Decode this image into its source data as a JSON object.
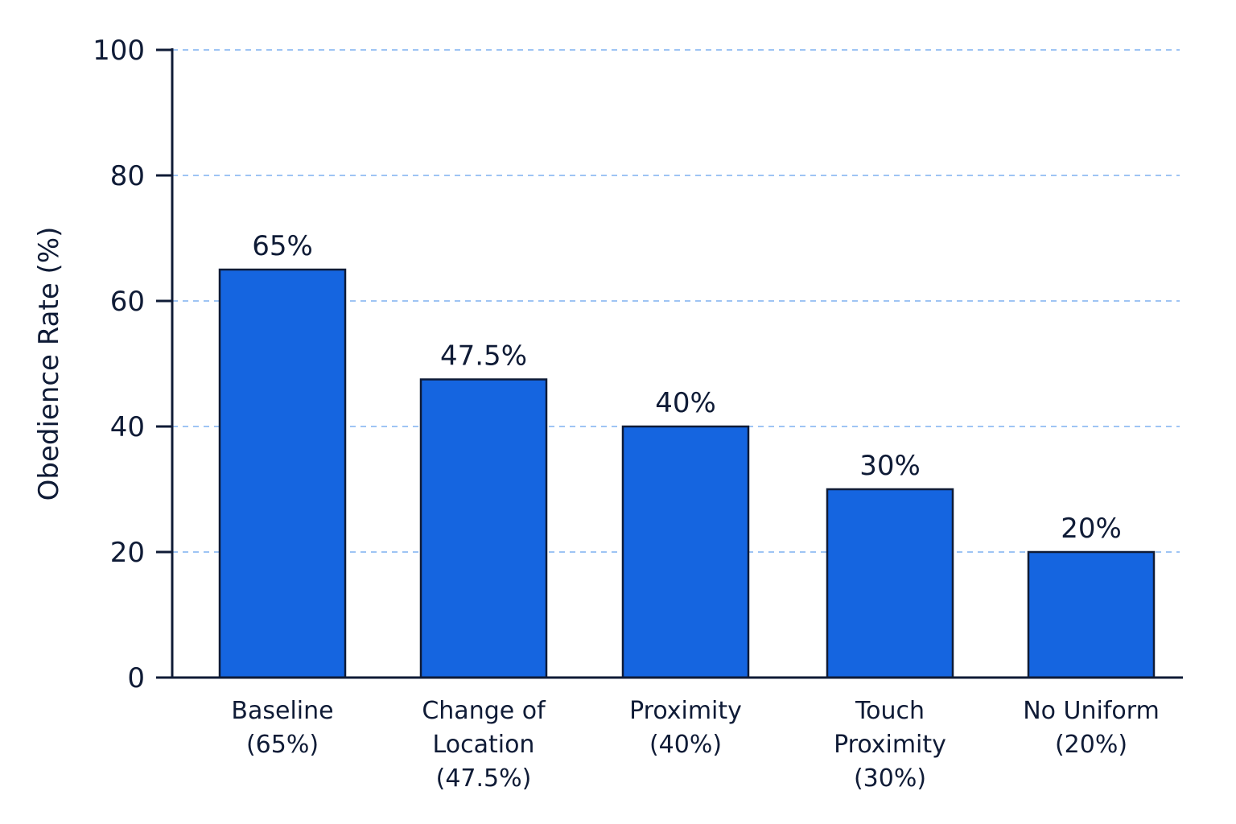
{
  "chart_data": {
    "type": "bar",
    "categories": [
      [
        "Baseline",
        "(65%)"
      ],
      [
        "Change of",
        "Location",
        "(47.5%)"
      ],
      [
        "Proximity",
        "(40%)"
      ],
      [
        "Touch",
        "Proximity",
        "(30%)"
      ],
      [
        "No Uniform",
        "(20%)"
      ]
    ],
    "values": [
      65,
      47.5,
      40,
      30,
      20
    ],
    "data_labels": [
      "65%",
      "47.5%",
      "40%",
      "30%",
      "20%"
    ],
    "title": "",
    "xlabel": "",
    "ylabel": "Obedience Rate (%)",
    "ylim": [
      0,
      100
    ],
    "yticks": [
      0,
      20,
      40,
      60,
      80,
      100
    ],
    "grid": true,
    "colors": {
      "bar": "#1565e0",
      "bar_edge": "#0f1b36",
      "grid": "#7fb0f0",
      "axis": "#0f1b36",
      "text": "#0f1b36"
    }
  }
}
